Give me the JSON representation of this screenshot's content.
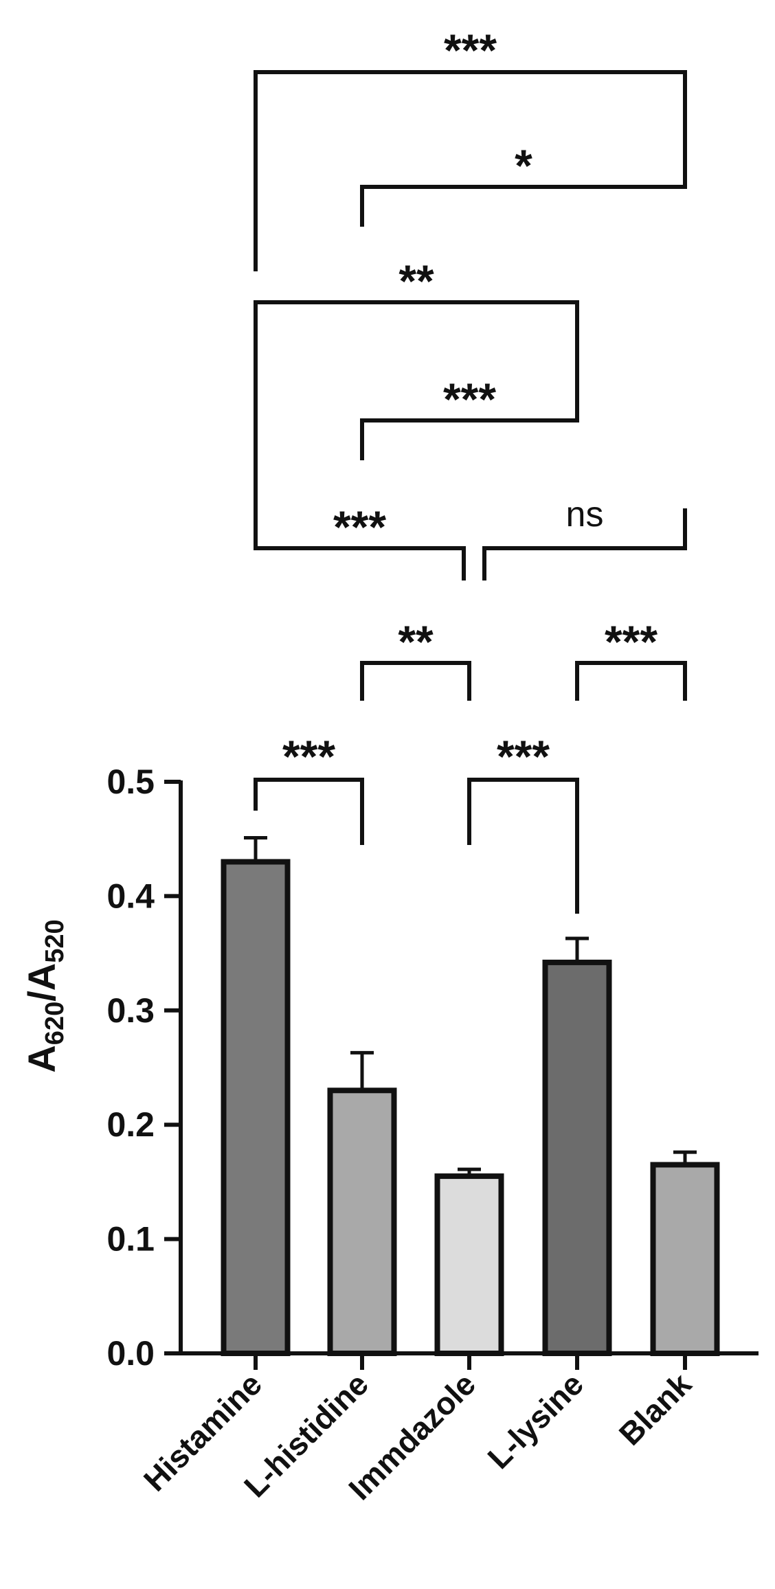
{
  "chart_data": {
    "type": "bar",
    "ylabel": {
      "main1": "A",
      "sub1": "620",
      "sep": "/",
      "main2": "A",
      "sub2": "520"
    },
    "categories": [
      "Histamine",
      "L-histidine",
      "Immdazole",
      "L-lysine",
      "Blank"
    ],
    "values": [
      0.43,
      0.23,
      0.155,
      0.342,
      0.165
    ],
    "errors": [
      0.021,
      0.033,
      0.006,
      0.021,
      0.011
    ],
    "bar_colors": [
      "#7a7a7a",
      "#a9a9a9",
      "#dcdcdc",
      "#6c6c6c",
      "#a9a9a9"
    ],
    "ylim": [
      0,
      0.5
    ],
    "yticks": [
      {
        "value": 0.0,
        "label": "0.0"
      },
      {
        "value": 0.1,
        "label": "0.1"
      },
      {
        "value": 0.2,
        "label": "0.2"
      },
      {
        "value": 0.3,
        "label": "0.3"
      },
      {
        "value": 0.4,
        "label": "0.4"
      },
      {
        "value": 0.5,
        "label": "0.5"
      }
    ],
    "comparisons": [
      {
        "a": 0,
        "b": 4,
        "label": "***"
      },
      {
        "a": 1,
        "b": 4,
        "label": "*"
      },
      {
        "a": 0,
        "b": 3,
        "label": "**"
      },
      {
        "a": 1,
        "b": 3,
        "label": "***"
      },
      {
        "a": 0,
        "b": 2,
        "label": "***"
      },
      {
        "a": 2,
        "b": 4,
        "label": "ns"
      },
      {
        "a": 1,
        "b": 2,
        "label": "**"
      },
      {
        "a": 3,
        "b": 4,
        "label": "***"
      },
      {
        "a": 0,
        "b": 1,
        "label": "***"
      },
      {
        "a": 2,
        "b": 3,
        "label": "***"
      }
    ],
    "grid": false
  }
}
